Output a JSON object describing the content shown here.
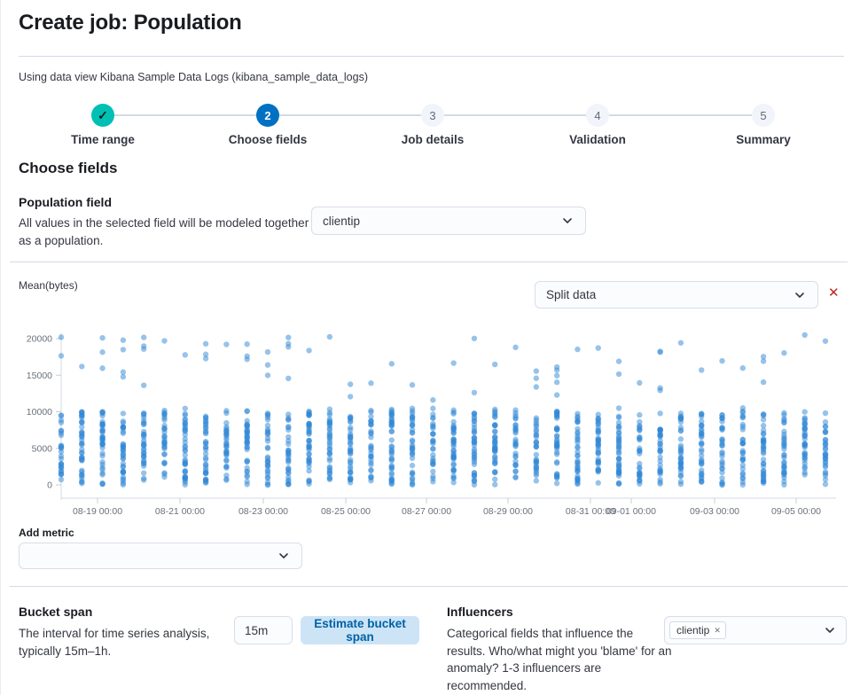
{
  "page": {
    "title": "Create job: Population",
    "subtitle": "Using data view Kibana Sample Data Logs (kibana_sample_data_logs)"
  },
  "icons": {
    "check": "✓",
    "close": "✕",
    "badge_remove": "✕"
  },
  "steps": {
    "items": [
      {
        "label": "Time range",
        "number": "",
        "status": "complete"
      },
      {
        "label": "Choose fields",
        "number": "2",
        "status": "current"
      },
      {
        "label": "Job details",
        "number": "3",
        "status": "incomplete"
      },
      {
        "label": "Validation",
        "number": "4",
        "status": "incomplete"
      },
      {
        "label": "Summary",
        "number": "5",
        "status": "incomplete"
      }
    ]
  },
  "choose_fields": {
    "heading": "Choose fields",
    "population": {
      "label": "Population field",
      "description": "All values in the selected field will be modeled together as a population.",
      "selected_value": "clientip"
    }
  },
  "metric_panel": {
    "metric_label": "Mean(bytes)",
    "split_data_value": "Split data",
    "add_metric_label": "Add metric",
    "add_metric_value": ""
  },
  "chart_data": {
    "type": "scatter",
    "title": "Mean(bytes)",
    "xlabel": "",
    "ylabel": "",
    "ylim": [
      0,
      21000
    ],
    "yticks": [
      0,
      5000,
      10000,
      15000,
      20000
    ],
    "xticks": [
      {
        "label": "08-19 00:00",
        "pos": 0.0476
      },
      {
        "label": "08-21 00:00",
        "pos": 0.1554
      },
      {
        "label": "08-23 00:00",
        "pos": 0.2645
      },
      {
        "label": "08-25 00:00",
        "pos": 0.3724
      },
      {
        "label": "08-27 00:00",
        "pos": 0.478
      },
      {
        "label": "08-29 00:00",
        "pos": 0.5847
      },
      {
        "label": "08-31 00:00",
        "pos": 0.6925
      },
      {
        "label": "09-01 00:00",
        "pos": 0.7459
      },
      {
        "label": "09-03 00:00",
        "pos": 0.855
      },
      {
        "label": "09-05 00:00",
        "pos": 0.9617
      }
    ],
    "grid": false,
    "legend": false,
    "point_color": "#3087d6",
    "point_opacity": 0.5,
    "point_radius": 3.2,
    "scatter": {
      "description": "Approx. 38 half-day time buckets of mean(bytes) per clientip population member; dense band 0-10700 with sparse outliers 11600-20500",
      "columns": 38,
      "seed": 7,
      "dense": {
        "min": 0,
        "max_low": 9700,
        "max_high": 10700,
        "count_min": 28,
        "count_max": 42
      },
      "outliers": {
        "min": 11600,
        "max": 20500,
        "count_max": 5
      }
    }
  },
  "bucket_span": {
    "heading": "Bucket span",
    "description": "The interval for time series analysis, typically 15m–1h.",
    "value": "15m",
    "estimate_button": "Estimate bucket span"
  },
  "influencers": {
    "heading": "Influencers",
    "description": "Categorical fields that influence the results. Who/what might you 'blame' for an anomaly? 1-3 influencers are recommended.",
    "selected_badge": "clientip"
  },
  "colors": {
    "step_complete_teal": "#00bfb3",
    "step_current_blue": "#0071c2",
    "danger_red": "#bd271e",
    "scatter_blue": "#3087d6",
    "button_light_blue": "#cce4f5",
    "divider": "#d3dae6"
  }
}
